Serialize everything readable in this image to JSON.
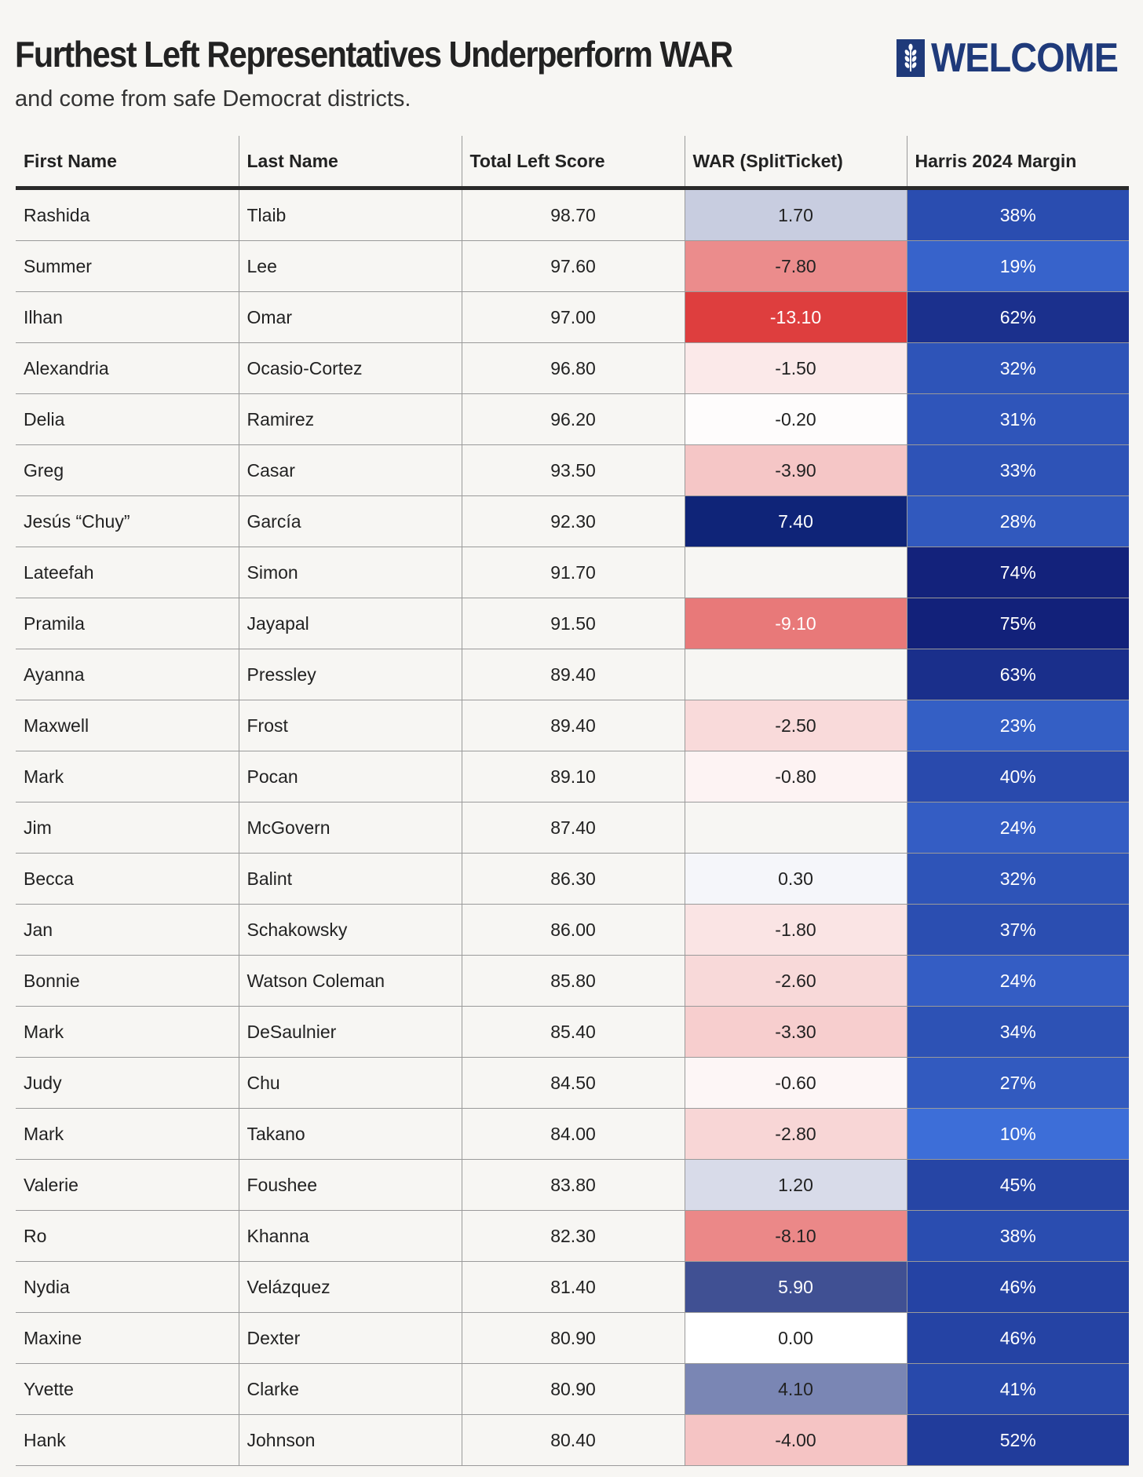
{
  "header": {
    "title": "Furthest Left Representatives Underperform WAR",
    "subtitle": "and come from safe Democrat districts.",
    "logo_text": "WELCOME",
    "logo_icon": "wheat-icon"
  },
  "colors": {
    "background": "#f7f6f3",
    "brand": "#1f3a7a",
    "positive_max": "#0f2478",
    "negative_max": "#de3e3e",
    "neutral": "#ffffff",
    "margin_low": "#3d6ed8",
    "margin_high": "#12217a"
  },
  "chart_data": {
    "type": "table",
    "title": "Furthest Left Representatives Underperform WAR",
    "subtitle": "and come from safe Democrat districts.",
    "columns": [
      "First Name",
      "Last Name",
      "Total Left Score",
      "WAR (SplitTicket)",
      "Harris 2024 Margin"
    ],
    "rows": [
      {
        "first": "Rashida",
        "last": "Tlaib",
        "score": "98.70",
        "war": "1.70",
        "margin": "38%"
      },
      {
        "first": "Summer",
        "last": "Lee",
        "score": "97.60",
        "war": "-7.80",
        "margin": "19%"
      },
      {
        "first": "Ilhan",
        "last": "Omar",
        "score": "97.00",
        "war": "-13.10",
        "margin": "62%"
      },
      {
        "first": "Alexandria",
        "last": "Ocasio-Cortez",
        "score": "96.80",
        "war": "-1.50",
        "margin": "32%"
      },
      {
        "first": "Delia",
        "last": "Ramirez",
        "score": "96.20",
        "war": "-0.20",
        "margin": "31%"
      },
      {
        "first": "Greg",
        "last": "Casar",
        "score": "93.50",
        "war": "-3.90",
        "margin": "33%"
      },
      {
        "first": "Jesús “Chuy”",
        "last": "García",
        "score": "92.30",
        "war": "7.40",
        "margin": "28%"
      },
      {
        "first": "Lateefah",
        "last": "Simon",
        "score": "91.70",
        "war": "",
        "margin": "74%"
      },
      {
        "first": "Pramila",
        "last": "Jayapal",
        "score": "91.50",
        "war": "-9.10",
        "margin": "75%"
      },
      {
        "first": "Ayanna",
        "last": "Pressley",
        "score": "89.40",
        "war": "",
        "margin": "63%"
      },
      {
        "first": "Maxwell",
        "last": "Frost",
        "score": "89.40",
        "war": "-2.50",
        "margin": "23%"
      },
      {
        "first": "Mark",
        "last": "Pocan",
        "score": "89.10",
        "war": "-0.80",
        "margin": "40%"
      },
      {
        "first": "Jim",
        "last": "McGovern",
        "score": "87.40",
        "war": "",
        "margin": "24%"
      },
      {
        "first": "Becca",
        "last": "Balint",
        "score": "86.30",
        "war": "0.30",
        "margin": "32%"
      },
      {
        "first": "Jan",
        "last": "Schakowsky",
        "score": "86.00",
        "war": "-1.80",
        "margin": "37%"
      },
      {
        "first": "Bonnie",
        "last": "Watson Coleman",
        "score": "85.80",
        "war": "-2.60",
        "margin": "24%"
      },
      {
        "first": "Mark",
        "last": "DeSaulnier",
        "score": "85.40",
        "war": "-3.30",
        "margin": "34%"
      },
      {
        "first": "Judy",
        "last": "Chu",
        "score": "84.50",
        "war": "-0.60",
        "margin": "27%"
      },
      {
        "first": "Mark",
        "last": "Takano",
        "score": "84.00",
        "war": "-2.80",
        "margin": "10%"
      },
      {
        "first": "Valerie",
        "last": "Foushee",
        "score": "83.80",
        "war": "1.20",
        "margin": "45%"
      },
      {
        "first": "Ro",
        "last": "Khanna",
        "score": "82.30",
        "war": "-8.10",
        "margin": "38%"
      },
      {
        "first": "Nydia",
        "last": "Velázquez",
        "score": "81.40",
        "war": "5.90",
        "margin": "46%"
      },
      {
        "first": "Maxine",
        "last": "Dexter",
        "score": "80.90",
        "war": "0.00",
        "margin": "46%"
      },
      {
        "first": "Yvette",
        "last": "Clarke",
        "score": "80.90",
        "war": "4.10",
        "margin": "41%"
      },
      {
        "first": "Hank",
        "last": "Johnson",
        "score": "80.40",
        "war": "-4.00",
        "margin": "52%"
      }
    ]
  }
}
